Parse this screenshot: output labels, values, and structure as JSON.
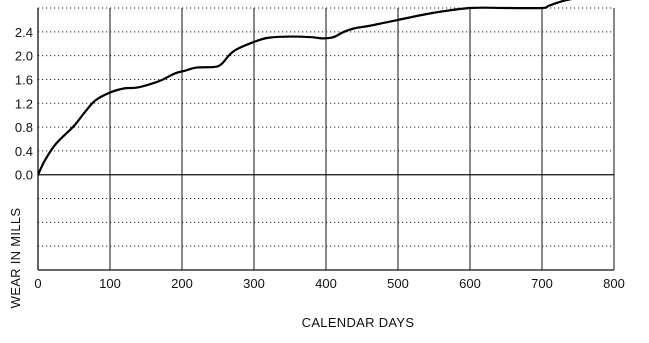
{
  "chart_data": {
    "type": "line",
    "title": "",
    "xlabel": "CALENDAR DAYS",
    "ylabel": "WEAR IN MILLS",
    "xlim": [
      0,
      800
    ],
    "ylim": [
      -1.6,
      2.8
    ],
    "x_ticks": [
      "0",
      "100",
      "200",
      "300",
      "400",
      "500",
      "600",
      "700",
      "800"
    ],
    "y_ticks": [
      "2.4",
      "2.0",
      "1.6",
      "1.2",
      "0.8",
      "0.4",
      "0.0"
    ],
    "grid": true,
    "series": [
      {
        "x": [
          0,
          10,
          25,
          50,
          65,
          80,
          100,
          120,
          135,
          150,
          170,
          190,
          205,
          220,
          245,
          255,
          265,
          275,
          300,
          320,
          350,
          380,
          395,
          410,
          425,
          440,
          460,
          500,
          550,
          600,
          650,
          700,
          710,
          730,
          760
        ],
        "values": [
          0.0,
          0.25,
          0.52,
          0.82,
          1.05,
          1.25,
          1.38,
          1.45,
          1.46,
          1.5,
          1.58,
          1.7,
          1.75,
          1.8,
          1.81,
          1.86,
          2.0,
          2.1,
          2.23,
          2.3,
          2.32,
          2.31,
          2.29,
          2.31,
          2.4,
          2.46,
          2.5,
          2.6,
          2.72,
          2.8,
          2.8,
          2.8,
          2.84,
          2.92,
          3.0
        ]
      }
    ]
  }
}
